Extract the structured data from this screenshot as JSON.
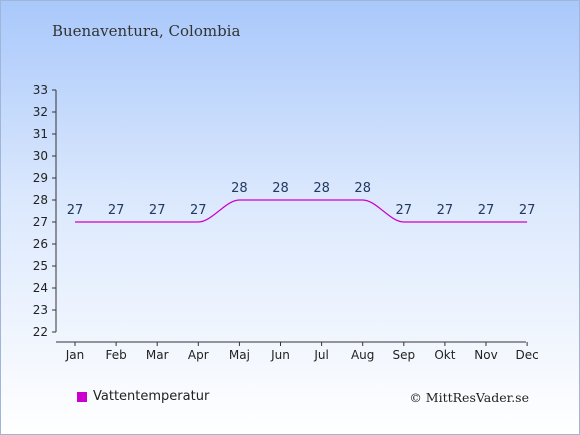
{
  "header": {
    "location": "Buenaventura, Colombia"
  },
  "legend": {
    "label": "Vattentemperatur",
    "color": "#cc00cc"
  },
  "footer": {
    "copyright": "© MittResVader.se"
  },
  "chart_data": {
    "type": "line",
    "title": "Buenaventura, Colombia",
    "categories": [
      "Jan",
      "Feb",
      "Mar",
      "Apr",
      "Maj",
      "Jun",
      "Jul",
      "Aug",
      "Sep",
      "Okt",
      "Nov",
      "Dec"
    ],
    "series": [
      {
        "name": "Vattentemperatur",
        "values": [
          27,
          27,
          27,
          27,
          28,
          28,
          28,
          28,
          27,
          27,
          27,
          27
        ],
        "color": "#cc00cc"
      }
    ],
    "ylim": [
      22,
      33
    ],
    "yticks": [
      22,
      23,
      24,
      25,
      26,
      27,
      28,
      29,
      30,
      31,
      32,
      33
    ],
    "grid": false,
    "legend_position": "bottom-left"
  }
}
